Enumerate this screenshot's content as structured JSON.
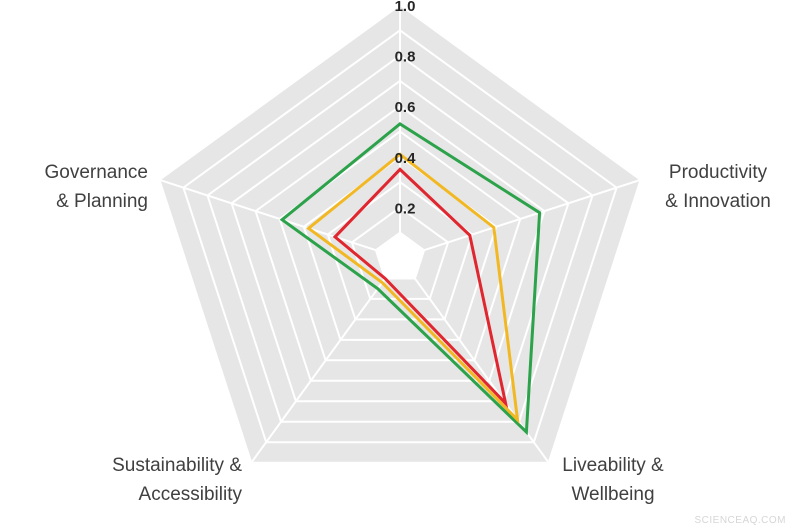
{
  "chart_data": {
    "type": "radar",
    "title": "",
    "axes": [
      "",
      "Productivity\n& Innovation",
      "Liveability &\nWellbeing",
      "Sustainability &\nAccessibility",
      "Governance\n& Planning"
    ],
    "rlim": [
      0,
      1.0
    ],
    "rticks": [
      0.2,
      0.4,
      0.6,
      0.8,
      1.0
    ],
    "rtick_labels": [
      "0.2",
      "0.4",
      "0.6",
      "0.8",
      "1.0"
    ],
    "grid": true,
    "series": [
      {
        "name": "green",
        "color": "#2ca24a",
        "values": [
          0.53,
          0.58,
          0.85,
          0.15,
          0.49
        ]
      },
      {
        "name": "yellow",
        "color": "#f2b823",
        "values": [
          0.41,
          0.39,
          0.79,
          0.12,
          0.38
        ]
      },
      {
        "name": "red",
        "color": "#e0262f",
        "values": [
          0.35,
          0.29,
          0.71,
          0.1,
          0.27
        ]
      }
    ]
  },
  "watermark": "SCIENCEAQ.COM",
  "colors": {
    "background": "#ffffff",
    "grid_fill": "#e6e6e6",
    "grid_line": "#ffffff"
  }
}
